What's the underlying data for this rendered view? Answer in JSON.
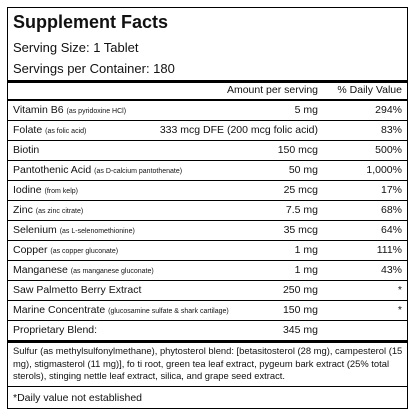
{
  "header": {
    "title": "Supplement Facts",
    "serving_size": "Serving Size: 1 Tablet",
    "servings_per_container": "Servings per Container: 180"
  },
  "table": {
    "columns": [
      "Amount per serving",
      "% Daily Value"
    ],
    "rows": [
      {
        "name": "Vitamin B6",
        "note": "(as pyridoxine HCl)",
        "amount": "5 mg",
        "dv": "294%"
      },
      {
        "name": "Folate",
        "note": "(as folic acid)",
        "amount": "333 mcg DFE (200 mcg folic acid)",
        "dv": "83%"
      },
      {
        "name": "Biotin",
        "note": "",
        "amount": "150 mcg",
        "dv": "500%"
      },
      {
        "name": "Pantothenic Acid",
        "note": "(as D-calcium pantothenate)",
        "amount": "50 mg",
        "dv": "1,000%"
      },
      {
        "name": "Iodine",
        "note": "(from kelp)",
        "amount": "25 mcg",
        "dv": "17%"
      },
      {
        "name": "Zinc",
        "note": "(as zinc citrate)",
        "amount": "7.5 mg",
        "dv": "68%"
      },
      {
        "name": "Selenium",
        "note": "(as L-selenomethionine)",
        "amount": "35 mcg",
        "dv": "64%"
      },
      {
        "name": "Copper",
        "note": "(as copper gluconate)",
        "amount": "1 mg",
        "dv": "111%"
      },
      {
        "name": "Manganese",
        "note": "(as manganese gluconate)",
        "amount": "1 mg",
        "dv": "43%"
      },
      {
        "name": "Saw Palmetto Berry Extract",
        "note": "",
        "amount": "250 mg",
        "dv": "*"
      },
      {
        "name": "Marine Concentrate",
        "note": "(glucosamine sulfate & shark cartilage)",
        "amount": "150 mg",
        "dv": "*"
      },
      {
        "name": "Proprietary Blend:",
        "note": "",
        "amount": "345 mg",
        "dv": ""
      }
    ]
  },
  "footnotes": {
    "blend": "Sulfur (as methylsulfonylmethane), phytosterol blend: [betasitosterol (28 mg), campesterol (15 mg), stigmasterol (11 mg)], fo ti root, green tea leaf extract, pygeum bark extract (25% total sterols), stinging nettle leaf extract, silica, and grape seed extract.",
    "daily_value": "*Daily value not established"
  }
}
